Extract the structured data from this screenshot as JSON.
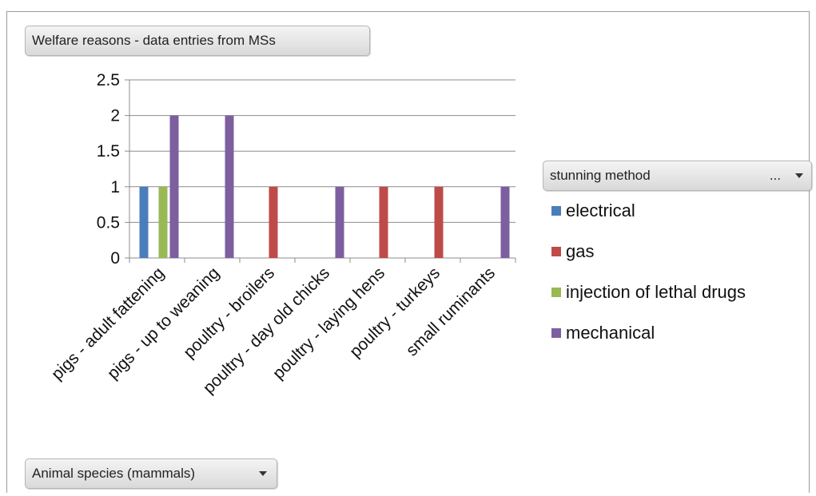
{
  "pivot": {
    "data_field": "Welfare reasons - data entries from MSs",
    "legend_field": "stunning method",
    "legend_filter_indicator": "...",
    "axis_field": "Animal species (mammals)"
  },
  "legend_items": [
    {
      "label": "electrical",
      "color": "#4a7ebb"
    },
    {
      "label": "gas",
      "color": "#be4b48"
    },
    {
      "label": "injection of lethal drugs",
      "color": "#98b954"
    },
    {
      "label": "mechanical",
      "color": "#7d5fa0"
    }
  ],
  "chart_data": {
    "type": "bar",
    "categories": [
      "pigs - adult fattening",
      "pigs - up to weaning",
      "poultry - broilers",
      "poultry - day old chicks",
      "poultry - laying hens",
      "poultry - turkeys",
      "small ruminants"
    ],
    "series": [
      {
        "name": "electrical",
        "color": "#4a7ebb",
        "values": [
          1,
          0,
          0,
          0,
          0,
          0,
          0
        ]
      },
      {
        "name": "gas",
        "color": "#be4b48",
        "values": [
          0,
          0,
          1,
          0,
          1,
          1,
          0
        ]
      },
      {
        "name": "injection of lethal drugs",
        "color": "#98b954",
        "values": [
          1,
          0,
          0,
          0,
          0,
          0,
          0
        ]
      },
      {
        "name": "mechanical",
        "color": "#7d5fa0",
        "values": [
          2,
          2,
          0,
          1,
          0,
          0,
          1
        ]
      }
    ],
    "yticks": [
      "0",
      "0.5",
      "1",
      "1.5",
      "2",
      "2.5"
    ],
    "ylim": [
      0,
      2.5
    ],
    "grid": true,
    "legend_position": "right"
  }
}
